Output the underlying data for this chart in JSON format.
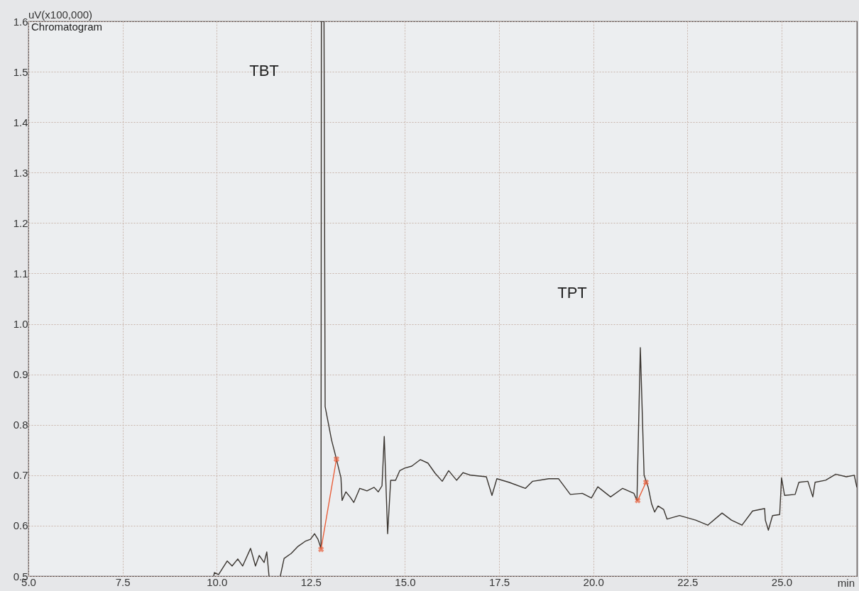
{
  "chart_data": {
    "type": "line",
    "title": "Chromatogram",
    "xlabel": "min",
    "ylabel": "uV(x100,000)",
    "xlim": [
      5,
      27
    ],
    "ylim": [
      0.5,
      1.6
    ],
    "xticks": [
      {
        "value": 5,
        "label": "5.0"
      },
      7.5,
      {
        "value": 10,
        "label": "10.0"
      },
      12.5,
      {
        "value": 15,
        "label": "15.0"
      },
      17.5,
      {
        "value": 20,
        "label": "20.0"
      },
      22.5,
      {
        "value": 25,
        "label": "25.0"
      }
    ],
    "yticks": [
      0.5,
      0.6,
      0.7,
      0.8,
      0.9,
      {
        "value": 1,
        "label": "1.0"
      },
      1.1,
      1.2,
      1.3,
      1.4,
      1.5,
      1.6
    ],
    "grid": true,
    "annotations": [
      "TBT",
      "TPT"
    ],
    "series": [
      {
        "color": "#3a3530",
        "marker": "none",
        "x": [
          9.92,
          9.94,
          10.05,
          10.28,
          10.41,
          10.56,
          10.69,
          10.9,
          11.03,
          11.13,
          11.26,
          11.33,
          11.39,
          11.5,
          11.69,
          11.79,
          11.98,
          12.16,
          12.35,
          12.49,
          12.6,
          12.69,
          12.77,
          12.78,
          12.85,
          12.88,
          13.05,
          13.16,
          13.3,
          13.33,
          13.43,
          13.54,
          13.64,
          13.8,
          13.99,
          14.18,
          14.29,
          14.39,
          14.45,
          14.54,
          14.62,
          14.75,
          14.86,
          14.99,
          15.18,
          15.41,
          15.61,
          15.8,
          15.99,
          16.16,
          16.37,
          16.54,
          16.75,
          17.16,
          17.31,
          17.44,
          17.76,
          18.2,
          18.39,
          18.82,
          19.08,
          19.39,
          19.71,
          19.95,
          20.12,
          20.46,
          20.78,
          21.08,
          21.16,
          21.25,
          21.35,
          21.46,
          21.55,
          21.63,
          21.72,
          21.87,
          21.96,
          22.29,
          22.72,
          23.04,
          23.42,
          23.67,
          23.95,
          24.23,
          24.55,
          24.57,
          24.65,
          24.76,
          24.95,
          25.0,
          25.08,
          25.36,
          25.46,
          25.7,
          25.83,
          25.89,
          26.17,
          26.44,
          26.72,
          26.93,
          27.0
        ],
        "values": [
          0.5,
          0.507,
          0.503,
          0.53,
          0.52,
          0.534,
          0.52,
          0.555,
          0.52,
          0.541,
          0.527,
          0.548,
          0.5,
          null,
          0.5,
          0.535,
          0.545,
          0.559,
          0.569,
          0.573,
          0.584,
          0.573,
          0.555,
          1.6,
          1.6,
          0.836,
          0.77,
          0.738,
          0.695,
          0.65,
          0.667,
          0.657,
          0.646,
          0.674,
          0.669,
          0.676,
          0.667,
          0.679,
          0.777,
          0.584,
          0.69,
          0.69,
          0.709,
          0.714,
          0.718,
          0.731,
          0.724,
          0.704,
          0.688,
          0.709,
          0.69,
          0.705,
          0.7,
          0.697,
          0.66,
          0.693,
          0.686,
          0.674,
          0.688,
          0.693,
          0.693,
          0.662,
          0.664,
          0.655,
          0.677,
          0.657,
          0.674,
          0.664,
          0.65,
          0.953,
          0.7,
          0.676,
          0.643,
          0.627,
          0.639,
          0.632,
          0.613,
          0.62,
          0.611,
          0.601,
          0.625,
          0.611,
          0.601,
          0.629,
          0.634,
          0.611,
          0.591,
          0.62,
          0.622,
          0.695,
          0.66,
          0.662,
          0.686,
          0.688,
          0.657,
          0.686,
          0.69,
          0.702,
          0.697,
          0.7,
          0.676
        ]
      },
      {
        "color": "#e8603c",
        "marker": "cross",
        "x": [
          12.77,
          13.18,
          13.3,
          21.18,
          21.4
        ],
        "values": [
          0.553,
          0.732,
          null,
          0.65,
          0.686
        ]
      }
    ]
  }
}
